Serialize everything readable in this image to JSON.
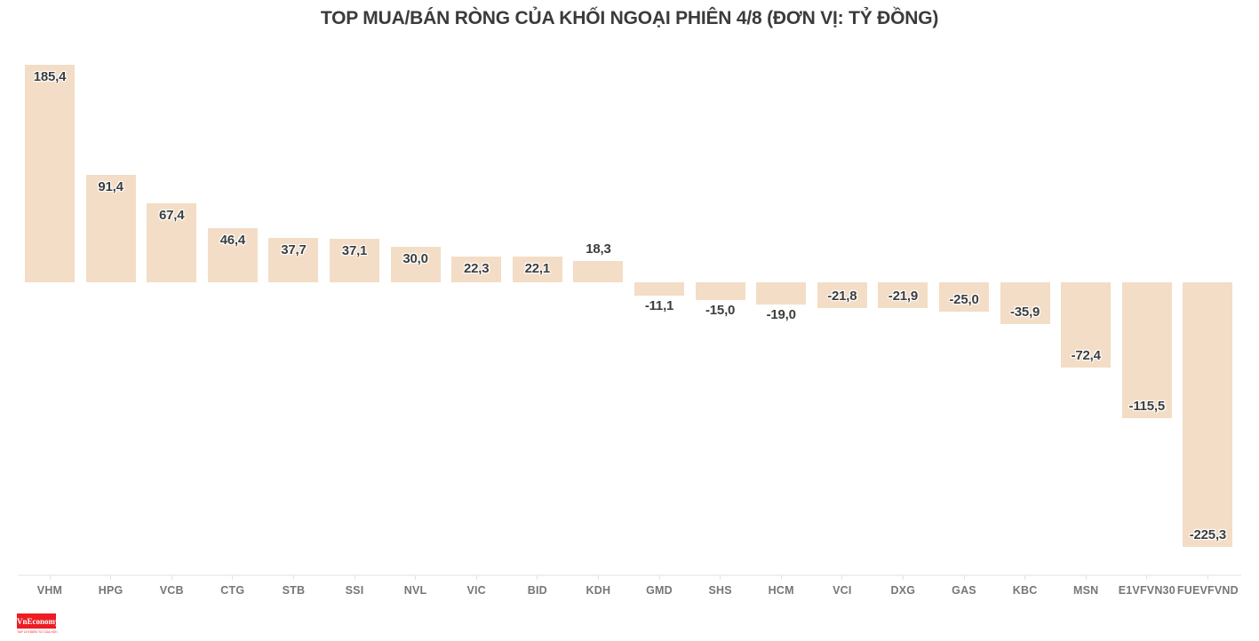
{
  "page": {
    "title": "TOP MUA/BÁN RÒNG CỦA KHỐI NGOẠI PHIÊN 4/8 (ĐƠN VỊ: TỶ ĐỒNG)"
  },
  "chart_data": {
    "type": "bar",
    "title": "TOP MUA/BÁN RÒNG CỦA KHỐI NGOẠI PHIÊN 4/8 (ĐƠN VỊ: TỶ ĐỒNG)",
    "unit": "tỷ đồng",
    "categories": [
      "VHM",
      "HPG",
      "VCB",
      "CTG",
      "STB",
      "SSI",
      "NVL",
      "VIC",
      "BID",
      "KDH",
      "GMD",
      "SHS",
      "HCM",
      "VCI",
      "DXG",
      "GAS",
      "KBC",
      "MSN",
      "E1VFVN30",
      "FUEVFVND"
    ],
    "values": [
      185.4,
      91.4,
      67.4,
      46.4,
      37.7,
      37.1,
      30.0,
      22.3,
      22.1,
      18.3,
      -11.1,
      -15.0,
      -19.0,
      -21.8,
      -21.9,
      -25.0,
      -35.9,
      -72.4,
      -115.5,
      -225.3
    ],
    "value_labels": [
      "185,4",
      "91,4",
      "67,4",
      "46,4",
      "37,7",
      "37,1",
      "30,0",
      "22,3",
      "22,1",
      "18,3",
      "-11,1",
      "-15,0",
      "-19,0",
      "-21,8",
      "-21,9",
      "-25,0",
      "-35,9",
      "-72,4",
      "-115,5",
      "-225,3"
    ],
    "xlabel": "",
    "ylabel": "",
    "ylim": [
      -250,
      205
    ],
    "grid": false,
    "legend": null,
    "bar_color": "#f3ddc6",
    "value_label_color": "#3d3d3d",
    "axis_label_color": "#767676"
  },
  "logo": {
    "text": "VnEconomy",
    "tagline": "TẠP CHÍ ĐIỆN TỬ CỦA HỘI KHOA HỌC KINH TẾ VIỆT NAM",
    "background": "#ed1c24"
  }
}
